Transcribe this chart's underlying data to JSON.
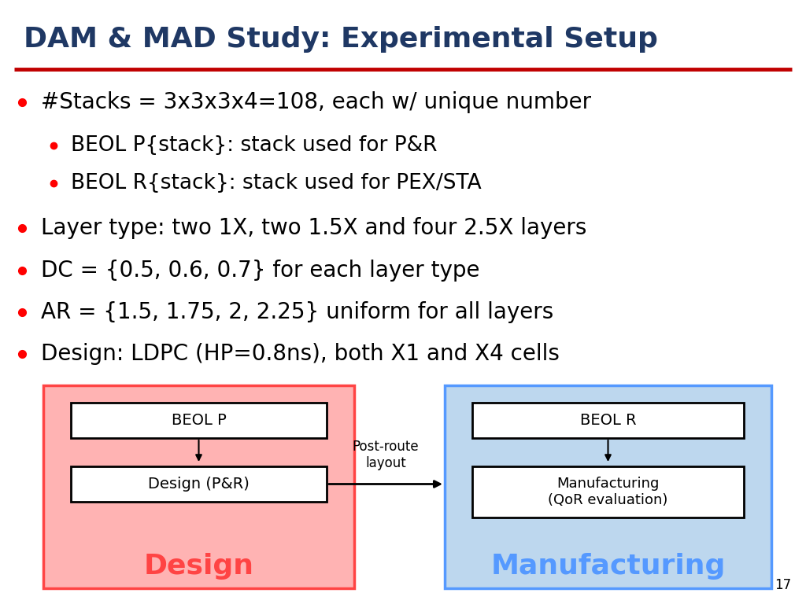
{
  "title": "DAM & MAD Study: Experimental Setup",
  "title_color": "#1F3864",
  "title_fontsize": 26,
  "divider_color": "#C00000",
  "bullet_color": "#FF0000",
  "text_color": "#000000",
  "bullet_items": [
    {
      "level": 0,
      "text": "#Stacks = 3x3x3x4=108, each w/ unique number"
    },
    {
      "level": 1,
      "text": "BEOL P{stack}: stack used for P&R"
    },
    {
      "level": 1,
      "text": "BEOL R{stack}: stack used for PEX/STA"
    },
    {
      "level": 0,
      "text": "Layer type: two 1X, two 1.5X and four 2.5X layers"
    },
    {
      "level": 0,
      "text": "DC = {0.5, 0.6, 0.7} for each layer type"
    },
    {
      "level": 0,
      "text": "AR = {1.5, 1.75, 2, 2.25} uniform for all layers"
    },
    {
      "level": 0,
      "text": "Design: LDPC (HP=0.8ns), both X1 and X4 cells"
    }
  ],
  "bullet_fontsize": 20,
  "sub_bullet_fontsize": 19,
  "design_box_color": "#FF4444",
  "design_box_fill": "#FFB3B3",
  "manufacturing_box_color": "#5599FF",
  "manufacturing_box_fill": "#BDD7EE",
  "inner_box_fill": "#FFFFFF",
  "inner_box_color": "#000000",
  "design_label": "Design",
  "manufacturing_label": "Manufacturing",
  "beol_p_label": "BEOL P",
  "design_pr_label": "Design (P&R)",
  "beol_r_label": "BEOL R",
  "mfg_label": "Manufacturing\n(QoR evaluation)",
  "post_route_label": "Post-route\nlayout",
  "page_number": "17",
  "bg_color": "#FFFFFF"
}
